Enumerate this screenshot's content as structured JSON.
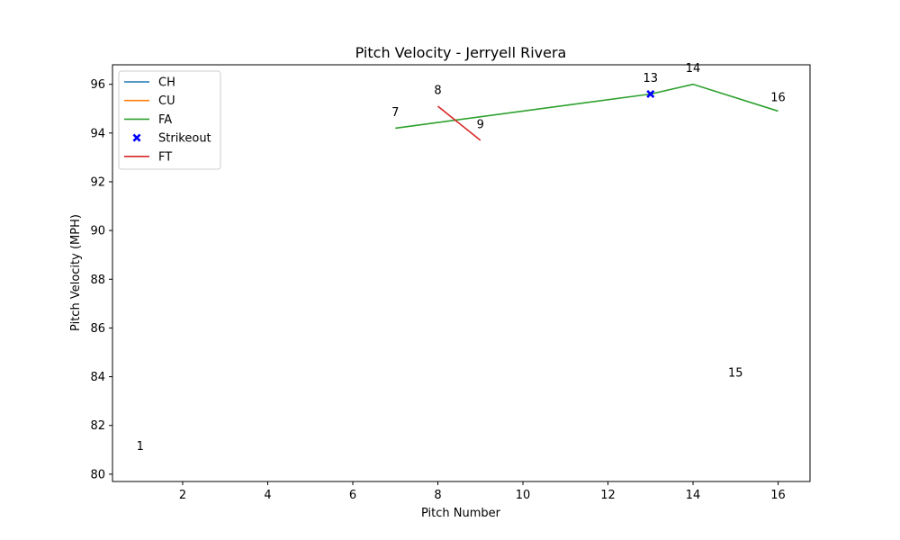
{
  "chart_data": {
    "type": "line",
    "title": "Pitch Velocity - Jerryell Rivera",
    "xlabel": "Pitch Number",
    "ylabel": "Pitch Velocity (MPH)",
    "xlim": [
      0.35,
      16.75
    ],
    "ylim": [
      79.7,
      96.8
    ],
    "xticks": [
      2,
      4,
      6,
      8,
      10,
      12,
      14,
      16
    ],
    "yticks": [
      80,
      82,
      84,
      86,
      88,
      90,
      92,
      94,
      96
    ],
    "grid": false,
    "legend_position": "top-left",
    "series": [
      {
        "name": "CH",
        "color": "#1f77b4",
        "x": [],
        "y": []
      },
      {
        "name": "CU",
        "color": "#ff7f0e",
        "x": [],
        "y": []
      },
      {
        "name": "FA",
        "color": "#2ca02c",
        "x": [
          7,
          13,
          14,
          16
        ],
        "y": [
          94.2,
          95.6,
          96.0,
          94.9
        ]
      },
      {
        "name": "FT",
        "color": "#d62728",
        "x": [
          8,
          9
        ],
        "y": [
          95.1,
          93.7
        ]
      }
    ],
    "markers": {
      "name": "Strikeout",
      "color": "#0000ff",
      "symbol": "X",
      "x": [
        13
      ],
      "y": [
        95.6
      ]
    },
    "point_labels": [
      {
        "text": "1",
        "x": 1,
        "y": 81.0
      },
      {
        "text": "7",
        "x": 7,
        "y": 94.7
      },
      {
        "text": "8",
        "x": 8,
        "y": 95.6
      },
      {
        "text": "9",
        "x": 9,
        "y": 94.2
      },
      {
        "text": "13",
        "x": 13,
        "y": 96.1
      },
      {
        "text": "14",
        "x": 14,
        "y": 96.5
      },
      {
        "text": "15",
        "x": 15,
        "y": 84.0
      },
      {
        "text": "16",
        "x": 16,
        "y": 95.3
      }
    ],
    "legend": [
      "CH",
      "CU",
      "FA",
      "Strikeout",
      "FT"
    ]
  }
}
